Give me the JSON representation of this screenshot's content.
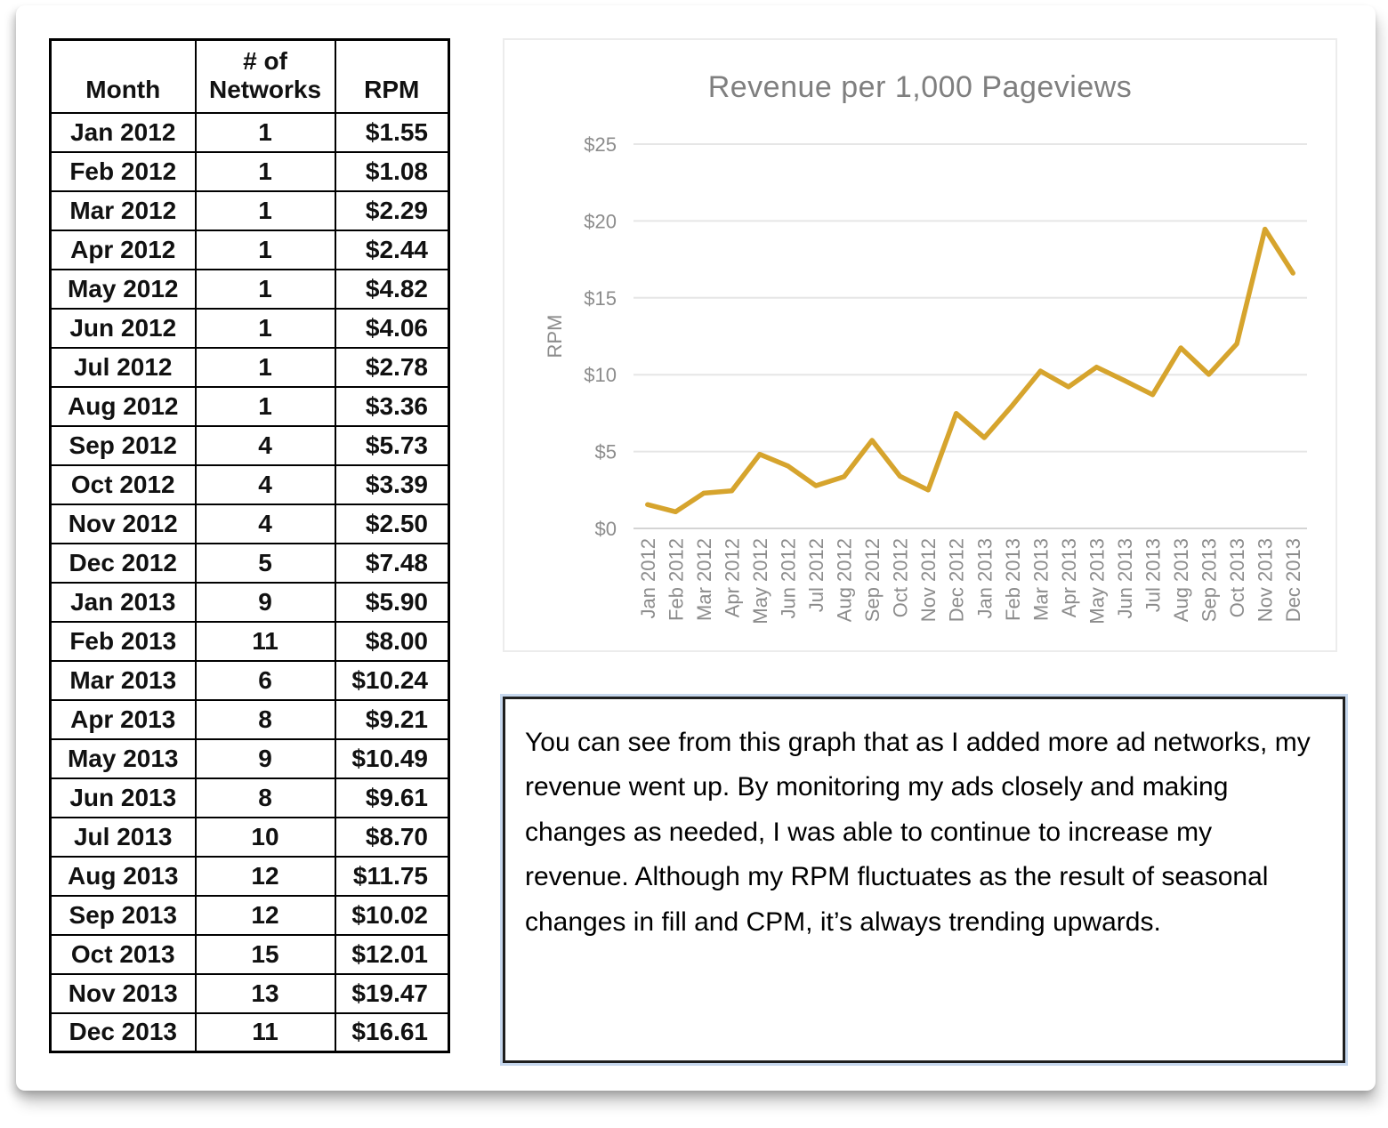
{
  "table": {
    "headers": [
      "Month",
      "# of Networks",
      "RPM"
    ],
    "rows": [
      [
        "Jan 2012",
        "1",
        "$1.55"
      ],
      [
        "Feb 2012",
        "1",
        "$1.08"
      ],
      [
        "Mar 2012",
        "1",
        "$2.29"
      ],
      [
        "Apr 2012",
        "1",
        "$2.44"
      ],
      [
        "May 2012",
        "1",
        "$4.82"
      ],
      [
        "Jun 2012",
        "1",
        "$4.06"
      ],
      [
        "Jul 2012",
        "1",
        "$2.78"
      ],
      [
        "Aug 2012",
        "1",
        "$3.36"
      ],
      [
        "Sep 2012",
        "4",
        "$5.73"
      ],
      [
        "Oct 2012",
        "4",
        "$3.39"
      ],
      [
        "Nov 2012",
        "4",
        "$2.50"
      ],
      [
        "Dec 2012",
        "5",
        "$7.48"
      ],
      [
        "Jan 2013",
        "9",
        "$5.90"
      ],
      [
        "Feb 2013",
        "11",
        "$8.00"
      ],
      [
        "Mar 2013",
        "6",
        "$10.24"
      ],
      [
        "Apr 2013",
        "8",
        "$9.21"
      ],
      [
        "May 2013",
        "9",
        "$10.49"
      ],
      [
        "Jun 2013",
        "8",
        "$9.61"
      ],
      [
        "Jul 2013",
        "10",
        "$8.70"
      ],
      [
        "Aug 2013",
        "12",
        "$11.75"
      ],
      [
        "Sep 2013",
        "12",
        "$10.02"
      ],
      [
        "Oct 2013",
        "15",
        "$12.01"
      ],
      [
        "Nov 2013",
        "13",
        "$19.47"
      ],
      [
        "Dec 2013",
        "11",
        "$16.61"
      ]
    ]
  },
  "chart_data": {
    "type": "line",
    "title": "Revenue per 1,000 Pageviews",
    "ylabel": "RPM",
    "xlabel": "",
    "categories": [
      "Jan 2012",
      "Feb 2012",
      "Mar 2012",
      "Apr 2012",
      "May 2012",
      "Jun 2012",
      "Jul 2012",
      "Aug 2012",
      "Sep 2012",
      "Oct 2012",
      "Nov 2012",
      "Dec 2012",
      "Jan 2013",
      "Feb 2013",
      "Mar 2013",
      "Apr 2013",
      "May 2013",
      "Jun 2013",
      "Jul 2013",
      "Aug 2013",
      "Sep 2013",
      "Oct 2013",
      "Nov 2013",
      "Dec 2013"
    ],
    "values": [
      1.55,
      1.08,
      2.29,
      2.44,
      4.82,
      4.06,
      2.78,
      3.36,
      5.73,
      3.39,
      2.5,
      7.48,
      5.9,
      8.0,
      10.24,
      9.21,
      10.49,
      9.61,
      8.7,
      11.75,
      10.02,
      12.01,
      19.47,
      16.61
    ],
    "ylim": [
      0,
      25
    ],
    "ytick_step": 5,
    "ytick_labels": [
      "$0",
      "$5",
      "$10",
      "$15",
      "$20",
      "$25"
    ],
    "grid": true,
    "legend": "none",
    "line_color": "#D6A42D",
    "gridline_color": "#e6e6e6",
    "axis_line_color": "#d4d4d4",
    "text_color": "#8c8c8c",
    "title_color": "#7f7f7f"
  },
  "note": {
    "text": "You can see from this graph that as I added more ad networks, my revenue went up. By monitoring my ads closely and making changes as needed, I was able to continue to increase my revenue. Although my RPM fluctuates as the result of seasonal changes in fill and CPM, it’s always trending upwards."
  }
}
